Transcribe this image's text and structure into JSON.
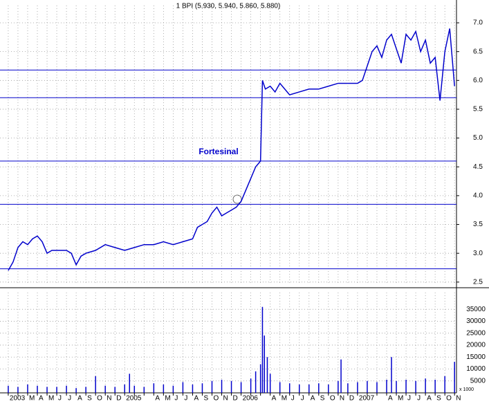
{
  "chart_data": {
    "type": "line",
    "title": "1 BPI (5.930, 5.940, 5.860, 5.880)",
    "annotation": "Fortesinal",
    "categories": [
      "2003",
      null,
      "M",
      "A",
      "M",
      "J",
      "J",
      "A",
      "S",
      "O",
      "N",
      "D",
      "2005",
      null,
      null,
      "A",
      "M",
      "J",
      "J",
      "A",
      "S",
      "O",
      "N",
      "D",
      "2006",
      null,
      null,
      "A",
      "M",
      "J",
      "J",
      "A",
      "S",
      "O",
      "N",
      "D",
      "2007",
      null,
      null,
      "A",
      "M",
      "J",
      "J",
      "A",
      "S",
      "O",
      "N"
    ],
    "xlim": [
      -0.85,
      46.2
    ],
    "ylim": [
      2.45,
      7.3
    ],
    "yticks": [
      2.5,
      {
        "value": 3,
        "label": "3.0"
      },
      3.5,
      {
        "value": 4,
        "label": "4.0"
      },
      4.5,
      {
        "value": 5,
        "label": "5.0"
      },
      5.5,
      {
        "value": 6,
        "label": "6.0"
      },
      6.5,
      {
        "value": 7,
        "label": "7.0"
      }
    ],
    "y2lim": [
      0,
      42000
    ],
    "y2ticks": [
      5000,
      10000,
      15000,
      20000,
      25000,
      30000,
      35000
    ],
    "y2_label": "x 1000",
    "hlines": [
      6.18,
      5.7,
      4.6,
      3.85,
      2.73
    ],
    "grid": true,
    "series": [
      {
        "name": "BPI",
        "color": "#0000cc",
        "x": [
          0,
          0.5,
          1,
          1.5,
          2,
          2.5,
          3,
          3.5,
          4,
          4.5,
          5,
          6,
          6.5,
          7,
          7.5,
          8,
          9,
          10,
          11,
          12,
          13,
          14,
          15,
          16,
          17,
          18,
          19,
          19.5,
          20,
          20.5,
          21,
          21.5,
          22,
          22.5,
          23,
          23.5,
          24,
          24.5,
          25,
          25.5,
          26,
          26.2,
          26.5,
          27,
          27.5,
          28,
          29,
          30,
          31,
          32,
          33,
          34,
          35,
          36,
          36.5,
          37,
          37.5,
          38,
          38.5,
          39,
          39.5,
          40,
          40.5,
          41,
          41.5,
          42,
          42.5,
          43,
          43.5,
          44,
          44.5,
          45,
          45.5,
          46
        ],
        "values": [
          2.7,
          2.85,
          3.1,
          3.2,
          3.15,
          3.25,
          3.3,
          3.2,
          3.0,
          3.05,
          3.05,
          3.05,
          3.0,
          2.8,
          2.95,
          3.0,
          3.05,
          3.15,
          3.1,
          3.05,
          3.1,
          3.15,
          3.15,
          3.2,
          3.15,
          3.2,
          3.25,
          3.45,
          3.5,
          3.55,
          3.7,
          3.8,
          3.65,
          3.7,
          3.75,
          3.8,
          3.9,
          4.1,
          4.3,
          4.5,
          4.6,
          6.0,
          5.85,
          5.9,
          5.8,
          5.95,
          5.75,
          5.8,
          5.85,
          5.85,
          5.9,
          5.95,
          5.95,
          5.95,
          6.0,
          6.25,
          6.5,
          6.6,
          6.4,
          6.7,
          6.8,
          6.55,
          6.3,
          6.8,
          6.7,
          6.85,
          6.5,
          6.7,
          6.3,
          6.4,
          5.65,
          6.5,
          6.9,
          5.9
        ]
      },
      {
        "name": "Volume",
        "color": "#0000cc",
        "axis": "y2",
        "x": [
          0,
          1,
          2,
          3,
          4,
          5,
          6,
          7,
          8,
          9,
          10,
          11,
          12,
          12.5,
          13,
          14,
          15,
          16,
          17,
          18,
          19,
          20,
          21,
          22,
          23,
          24,
          25,
          25.5,
          26,
          26.2,
          26.4,
          26.7,
          27,
          28,
          29,
          30,
          31,
          32,
          33,
          34,
          34.3,
          35,
          36,
          37,
          38,
          39,
          39.5,
          40,
          41,
          42,
          43,
          44,
          45,
          46
        ],
        "values": [
          3000,
          2500,
          3500,
          3000,
          2500,
          2500,
          3000,
          2000,
          2500,
          7000,
          3000,
          2500,
          3500,
          8000,
          3000,
          2500,
          4000,
          3500,
          3000,
          4500,
          3500,
          4000,
          5000,
          5500,
          5000,
          4500,
          6000,
          9000,
          12000,
          36000,
          24000,
          15000,
          8000,
          4500,
          4000,
          3500,
          3500,
          4000,
          3500,
          5000,
          14000,
          4000,
          4500,
          5000,
          4500,
          5500,
          15000,
          5000,
          5500,
          5000,
          6000,
          5500,
          7000,
          13000
        ]
      }
    ]
  }
}
